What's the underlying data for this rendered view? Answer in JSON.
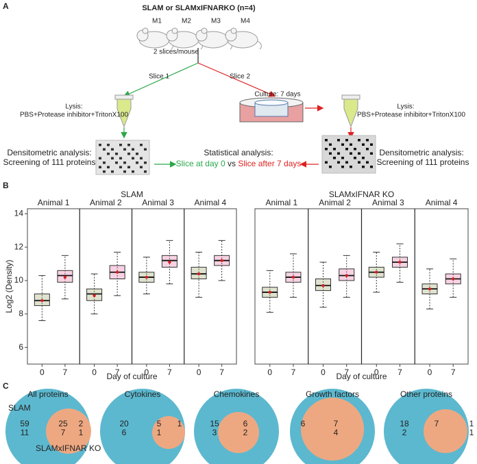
{
  "panel_a": {
    "label": "A",
    "title": "SLAM or SLAMxIFNARKO (n=4)",
    "mice": [
      "M1",
      "M2",
      "M3",
      "M4"
    ],
    "slices": "2 slices/mouse",
    "slice1": "Slice 1",
    "slice2": "Slice 2",
    "culture": "Culture: 7 days",
    "lysis_left": [
      "Lysis:",
      "PBS+Protease inhibitor+TritonX100"
    ],
    "lysis_right": [
      "Lysis:",
      "PBS+Protease inhibitor+TritonX100"
    ],
    "densito_left": [
      "Densitometric analysis:",
      "Screening of 111 proteins"
    ],
    "densito_right": [
      "Densitometric analysis:",
      "Screening of 111 proteins"
    ],
    "stat_title": "Statistical analysis:",
    "stat_line": [
      "Slice at day 0",
      "vs",
      "Slice after 7 days"
    ]
  },
  "panel_b": {
    "label": "B"
  },
  "chart_data": [
    {
      "type": "box",
      "title": "SLAM",
      "y_label": "Log2 (Density)",
      "x_label": "Day of culture",
      "groups": [
        "Animal 1",
        "Animal 2",
        "Animal 3",
        "Animal 4"
      ],
      "days": [
        "0",
        "7"
      ],
      "colors": [
        "#a3ad74",
        "#e77fab"
      ],
      "ylim": [
        5,
        14.3
      ],
      "yticks": [
        6,
        8,
        10,
        12,
        14
      ],
      "boxes": [
        [
          {
            "low": 7.6,
            "q1": 8.5,
            "median": 8.8,
            "q3": 9.2,
            "high": 10.3,
            "mean": 8.8
          },
          {
            "low": 8.9,
            "q1": 9.9,
            "median": 10.3,
            "q3": 10.6,
            "high": 11.5,
            "mean": 10.2
          }
        ],
        [
          {
            "low": 8.0,
            "q1": 8.8,
            "median": 9.2,
            "q3": 9.5,
            "high": 10.4,
            "mean": 9.1
          },
          {
            "low": 9.1,
            "q1": 10.1,
            "median": 10.5,
            "q3": 10.9,
            "high": 11.7,
            "mean": 10.5
          }
        ],
        [
          {
            "low": 9.2,
            "q1": 9.9,
            "median": 10.2,
            "q3": 10.5,
            "high": 11.4,
            "mean": 10.2
          },
          {
            "low": 9.8,
            "q1": 10.8,
            "median": 11.2,
            "q3": 11.5,
            "high": 12.4,
            "mean": 11.1
          }
        ],
        [
          {
            "low": 9.0,
            "q1": 10.1,
            "median": 10.4,
            "q3": 10.8,
            "high": 11.7,
            "mean": 10.4
          },
          {
            "low": 10.0,
            "q1": 10.9,
            "median": 11.2,
            "q3": 11.5,
            "high": 12.4,
            "mean": 11.2
          }
        ]
      ]
    },
    {
      "type": "box",
      "title": "SLAMxIFNAR KO",
      "x_label": "Day of culture",
      "groups": [
        "Animal 1",
        "Animal 2",
        "Animal 3",
        "Animal 4"
      ],
      "days": [
        "0",
        "7"
      ],
      "colors": [
        "#a3ad74",
        "#e77fab"
      ],
      "ylim": [
        5,
        14.3
      ],
      "boxes": [
        [
          {
            "low": 8.1,
            "q1": 9.0,
            "median": 9.3,
            "q3": 9.6,
            "high": 10.6,
            "mean": 9.3
          },
          {
            "low": 9.0,
            "q1": 9.9,
            "median": 10.2,
            "q3": 10.5,
            "high": 11.6,
            "mean": 10.2
          }
        ],
        [
          {
            "low": 8.4,
            "q1": 9.4,
            "median": 9.7,
            "q3": 10.1,
            "high": 11.1,
            "mean": 9.7
          },
          {
            "low": 9.0,
            "q1": 10.0,
            "median": 10.3,
            "q3": 10.7,
            "high": 11.5,
            "mean": 10.3
          }
        ],
        [
          {
            "low": 9.3,
            "q1": 10.2,
            "median": 10.5,
            "q3": 10.8,
            "high": 11.7,
            "mean": 10.5
          },
          {
            "low": 9.9,
            "q1": 10.8,
            "median": 11.1,
            "q3": 11.4,
            "high": 12.2,
            "mean": 11.1
          }
        ],
        [
          {
            "low": 8.3,
            "q1": 9.2,
            "median": 9.5,
            "q3": 9.8,
            "high": 10.7,
            "mean": 9.5
          },
          {
            "low": 9.0,
            "q1": 9.8,
            "median": 10.1,
            "q3": 10.4,
            "high": 11.3,
            "mean": 10.1
          }
        ]
      ]
    }
  ],
  "panel_c": {
    "label": "C",
    "slam_label": "SLAM",
    "ko_label": "SLAMxIFNAR KO",
    "venns": [
      {
        "title": "All proteins",
        "regions": [
          [
            59,
            11
          ],
          [
            25,
            7
          ],
          [
            2,
            1
          ]
        ]
      },
      {
        "title": "Cytokines",
        "regions": [
          [
            20,
            6
          ],
          [
            5,
            1
          ],
          [
            1
          ]
        ]
      },
      {
        "title": "Chemokines",
        "regions": [
          [
            15,
            3
          ],
          [
            6,
            2
          ]
        ]
      },
      {
        "title": "Growth factors",
        "regions": [
          [
            6
          ],
          [
            7,
            4
          ]
        ]
      },
      {
        "title": "Other proteins",
        "regions": [
          [
            18,
            2
          ],
          [
            7
          ],
          [
            1,
            1
          ]
        ]
      }
    ]
  }
}
